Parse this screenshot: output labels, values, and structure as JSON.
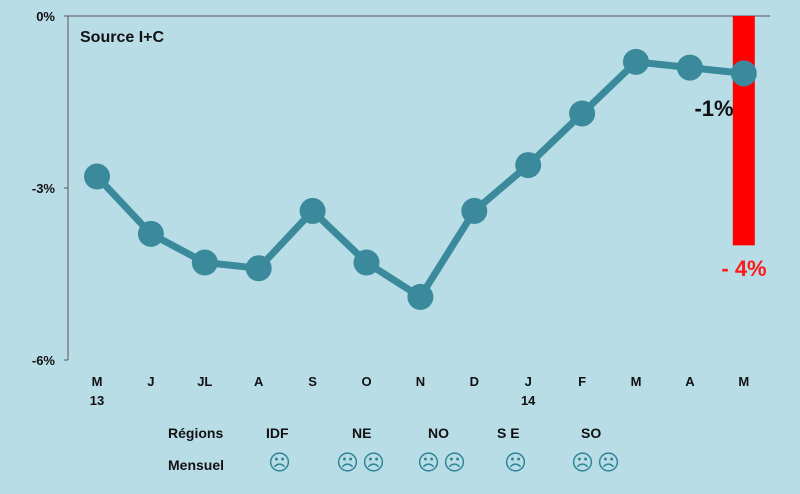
{
  "colors": {
    "background": "#b9dde7",
    "line": "#3a8a9c",
    "highlight": "#ff0000",
    "annotation_red": "#ff1a1a",
    "face": "#2e8496"
  },
  "chart_data": {
    "type": "line",
    "title": "Source I+C",
    "categories": [
      "M",
      "J",
      "JL",
      "A",
      "S",
      "O",
      "N",
      "D",
      "J",
      "F",
      "M",
      "A",
      "M"
    ],
    "year_labels": {
      "0": "13",
      "8": "14"
    },
    "values": [
      -2.8,
      -3.8,
      -4.3,
      -4.4,
      -3.4,
      -4.3,
      -4.9,
      -3.4,
      -2.6,
      -1.7,
      -0.8,
      -0.9,
      -1.0
    ],
    "yticks": [
      "0%",
      "-3%",
      "-6%"
    ],
    "ylim": [
      -6,
      0
    ],
    "grid": false,
    "highlight_bar": {
      "category_index": 12,
      "from": 0,
      "to": -4
    },
    "annotations": {
      "point_label": "-1%",
      "bar_label": "- 4%"
    }
  },
  "legend": {
    "regions_label": "Régions",
    "monthly_label": "Mensuel",
    "regions": [
      {
        "name": "IDF",
        "faces": 1,
        "face_icon": "☹"
      },
      {
        "name": "NE",
        "faces": 2,
        "face_icon": "☹"
      },
      {
        "name": "NO",
        "faces": 2,
        "face_icon": "☹"
      },
      {
        "name": "S E",
        "faces": 1,
        "face_icon": "☹"
      },
      {
        "name": "SO",
        "faces": 2,
        "face_icon": "☹"
      }
    ]
  }
}
